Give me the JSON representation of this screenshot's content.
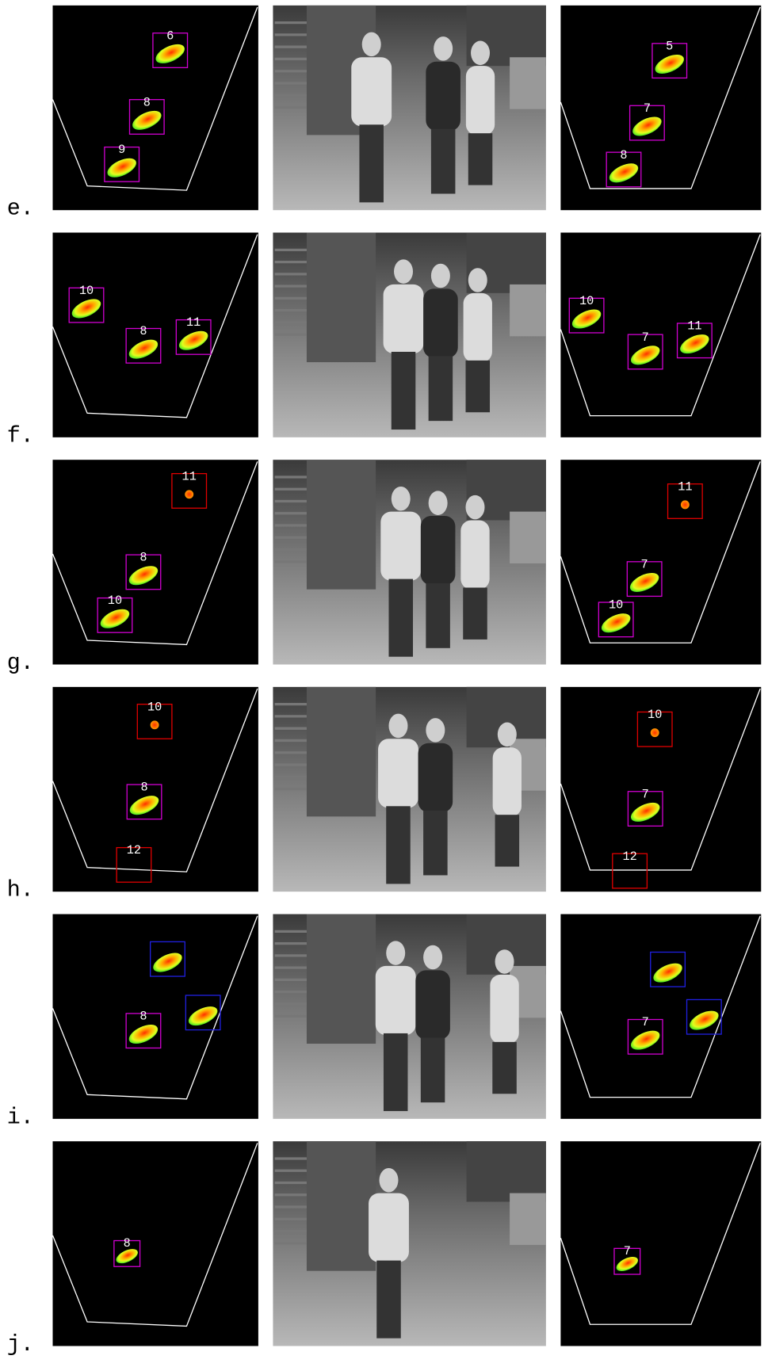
{
  "rows": [
    {
      "label": "e.",
      "left": [
        "6",
        "8",
        "9"
      ],
      "right": [
        "5",
        "7",
        "8"
      ]
    },
    {
      "label": "f.",
      "left": [
        "10",
        "8",
        "11"
      ],
      "right": [
        "10",
        "7",
        "11"
      ]
    },
    {
      "label": "g.",
      "left": [
        "11",
        "8",
        "10"
      ],
      "right": [
        "11",
        "7",
        "10"
      ]
    },
    {
      "label": "h.",
      "left": [
        "10",
        "8",
        "12"
      ],
      "right": [
        "10",
        "7",
        "12"
      ]
    },
    {
      "label": "i.",
      "left": [
        "8"
      ],
      "right": [
        "7"
      ]
    },
    {
      "label": "j.",
      "left": [
        "8"
      ],
      "right": [
        "7"
      ]
    }
  ]
}
